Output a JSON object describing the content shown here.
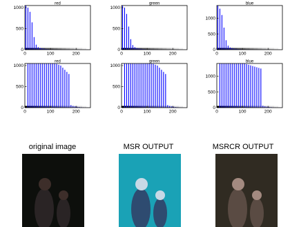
{
  "chart_data": [
    {
      "type": "bar",
      "title": "red",
      "ylim": [
        0,
        1050
      ],
      "yticks": [
        0,
        500,
        1000
      ],
      "xlim": [
        0,
        256
      ],
      "xticks": [
        0,
        100,
        200
      ],
      "clipped": false,
      "values": [
        1050,
        1000,
        900,
        650,
        300,
        120,
        60,
        40,
        30,
        22,
        16,
        12,
        10,
        9,
        8,
        7,
        6,
        5,
        5,
        4,
        4,
        4,
        3,
        3,
        3,
        3,
        2,
        2,
        2,
        2,
        2,
        1
      ]
    },
    {
      "type": "bar",
      "title": "green",
      "ylim": [
        0,
        1050
      ],
      "yticks": [
        0,
        500,
        1000
      ],
      "xlim": [
        0,
        256
      ],
      "xticks": [
        0,
        100,
        200
      ],
      "clipped": false,
      "values": [
        1050,
        1000,
        850,
        550,
        250,
        110,
        60,
        38,
        28,
        20,
        15,
        12,
        10,
        9,
        8,
        7,
        6,
        5,
        5,
        4,
        4,
        3,
        3,
        3,
        3,
        2,
        2,
        2,
        2,
        2,
        1,
        1
      ]
    },
    {
      "type": "bar",
      "title": "blue",
      "ylim": [
        0,
        1400
      ],
      "yticks": [
        0,
        500,
        1000
      ],
      "xlim": [
        0,
        256
      ],
      "xticks": [
        0,
        100,
        200
      ],
      "clipped": false,
      "values": [
        1400,
        1300,
        1100,
        700,
        300,
        130,
        70,
        45,
        33,
        25,
        18,
        14,
        12,
        10,
        9,
        8,
        7,
        6,
        5,
        5,
        4,
        4,
        4,
        3,
        3,
        3,
        2,
        2,
        2,
        2,
        2,
        1
      ]
    },
    {
      "type": "bar",
      "title": "red",
      "ylim": [
        0,
        1050
      ],
      "yticks": [
        0,
        500,
        1000
      ],
      "xlim": [
        0,
        256
      ],
      "xticks": [
        0,
        100,
        200
      ],
      "clipped": true,
      "values": [
        5,
        1100,
        1150,
        1200,
        1180,
        1170,
        1160,
        1150,
        1140,
        1130,
        1120,
        1100,
        1090,
        1080,
        1060,
        1040,
        1020,
        1000,
        950,
        900,
        850,
        800,
        60,
        40,
        30,
        20,
        15,
        10,
        8,
        5,
        3,
        2
      ]
    },
    {
      "type": "bar",
      "title": "green",
      "ylim": [
        0,
        1050
      ],
      "yticks": [
        0,
        500,
        1000
      ],
      "xlim": [
        0,
        256
      ],
      "xticks": [
        0,
        100,
        200
      ],
      "clipped": true,
      "values": [
        5,
        1100,
        1150,
        1200,
        1180,
        1170,
        1160,
        1150,
        1140,
        1130,
        1120,
        1100,
        1090,
        1080,
        1060,
        1040,
        1020,
        1000,
        950,
        900,
        850,
        800,
        60,
        40,
        30,
        20,
        15,
        10,
        8,
        5,
        3,
        2
      ]
    },
    {
      "type": "bar",
      "title": "blue",
      "ylim": [
        0,
        1400
      ],
      "yticks": [
        0,
        500,
        1000
      ],
      "xlim": [
        0,
        256
      ],
      "xticks": [
        0,
        100,
        200
      ],
      "clipped": true,
      "values": [
        5,
        1500,
        1550,
        1600,
        1580,
        1560,
        1540,
        1520,
        1500,
        1480,
        1460,
        1440,
        1420,
        1400,
        1380,
        1360,
        1340,
        1320,
        1300,
        1280,
        1260,
        1240,
        60,
        40,
        30,
        20,
        15,
        10,
        8,
        5,
        3,
        2
      ]
    }
  ],
  "images": [
    {
      "caption": "original image",
      "colors": {
        "bg": "#0d0f0c",
        "fig": "#2a2425",
        "skin": "#3d2e2a"
      }
    },
    {
      "caption": "MSR OUTPUT",
      "colors": {
        "bg": "#1aa2b6",
        "fig": "#2e4b70",
        "skin": "#c7d9e6"
      }
    },
    {
      "caption": "MSRCR OUTPUT",
      "colors": {
        "bg": "#302b22",
        "fig": "#5a4b43",
        "skin": "#a38a80"
      }
    }
  ]
}
